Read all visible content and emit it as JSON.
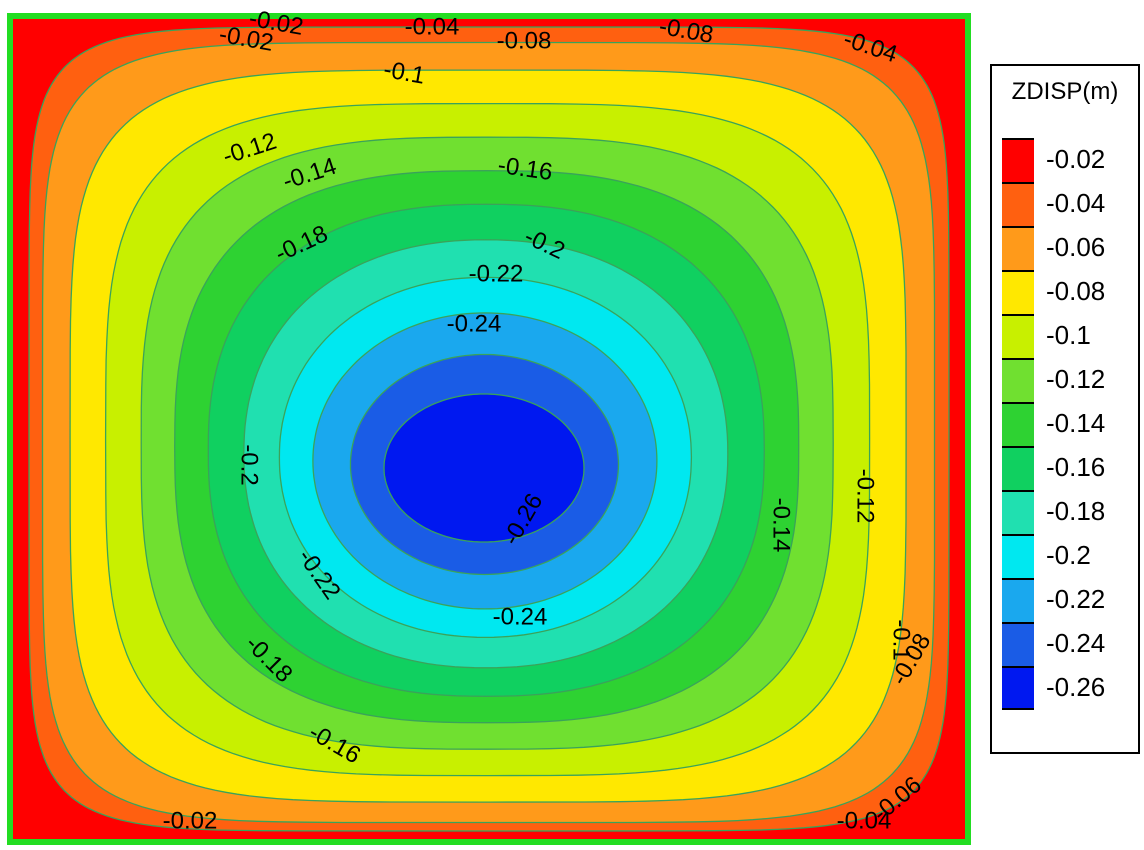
{
  "chart_data": {
    "type": "heatmap",
    "variable": "ZDISP(m)",
    "min_value": -0.26,
    "max_value": -0.02,
    "levels": [
      -0.02,
      -0.04,
      -0.06,
      -0.08,
      -0.1,
      -0.12,
      -0.14,
      -0.16,
      -0.18,
      -0.2,
      -0.22,
      -0.24,
      -0.26
    ],
    "legend": {
      "title": "ZDISP(m)",
      "entries": [
        {
          "label": "-0.02",
          "color": "#ff0000"
        },
        {
          "label": "-0.04",
          "color": "#ff6010"
        },
        {
          "label": "-0.06",
          "color": "#ff9a1a"
        },
        {
          "label": "-0.08",
          "color": "#ffe800"
        },
        {
          "label": "-0.1",
          "color": "#c8f000"
        },
        {
          "label": "-0.12",
          "color": "#70e030"
        },
        {
          "label": "-0.14",
          "color": "#2ed232"
        },
        {
          "label": "-0.16",
          "color": "#10d060"
        },
        {
          "label": "-0.18",
          "color": "#20e0b0"
        },
        {
          "label": "-0.2",
          "color": "#00e8f0"
        },
        {
          "label": "-0.22",
          "color": "#1aa8ee"
        },
        {
          "label": "-0.24",
          "color": "#1a5ce6"
        },
        {
          "label": "-0.26",
          "color": "#0018f0"
        }
      ]
    },
    "contour_labels": [
      "-0.02",
      "-0.04",
      "-0.08",
      "-0.08",
      "-0.04",
      "-0.02",
      "-0.1",
      "-0.12",
      "-0.14",
      "-0.16",
      "-0.18",
      "-0.2",
      "-0.22",
      "-0.24",
      "-0.26",
      "-0.24",
      "-0.22",
      "-0.2",
      "-0.18",
      "-0.16",
      "-0.14",
      "-0.12",
      "-0.1",
      "-0.08",
      "-0.06",
      "-0.04",
      "-0.02"
    ]
  }
}
